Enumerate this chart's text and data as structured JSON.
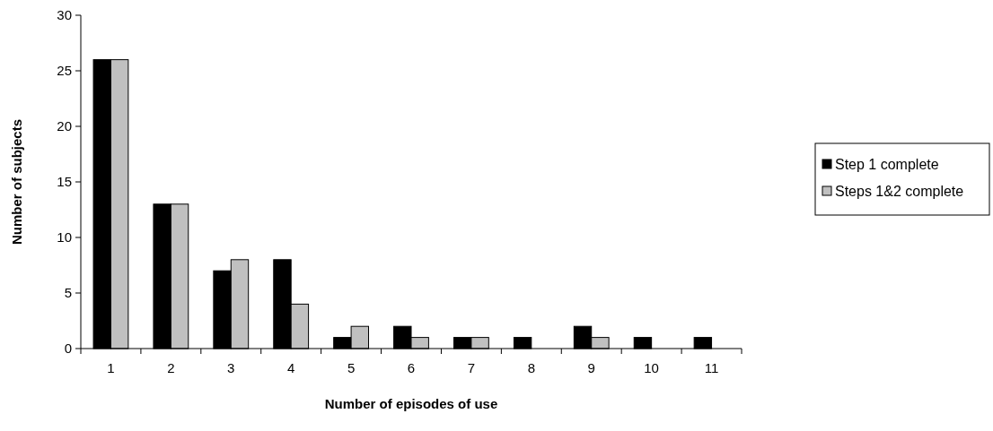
{
  "chart_data": {
    "type": "bar",
    "xlabel": "Number of episodes of use",
    "ylabel": "Number of subjects",
    "categories": [
      "1",
      "2",
      "3",
      "4",
      "5",
      "6",
      "7",
      "8",
      "9",
      "10",
      "11"
    ],
    "series": [
      {
        "name": "Step 1 complete",
        "color": "#000000",
        "values": [
          26,
          13,
          7,
          8,
          1,
          2,
          1,
          1,
          2,
          1,
          1
        ]
      },
      {
        "name": "Steps 1&2 complete",
        "color": "#c0c0c0",
        "values": [
          26,
          13,
          8,
          4,
          2,
          1,
          1,
          0,
          1,
          0,
          0
        ]
      }
    ],
    "ylim": [
      0,
      30
    ],
    "yticks": [
      0,
      5,
      10,
      15,
      20,
      25,
      30
    ],
    "grid": false,
    "legend": "right"
  }
}
